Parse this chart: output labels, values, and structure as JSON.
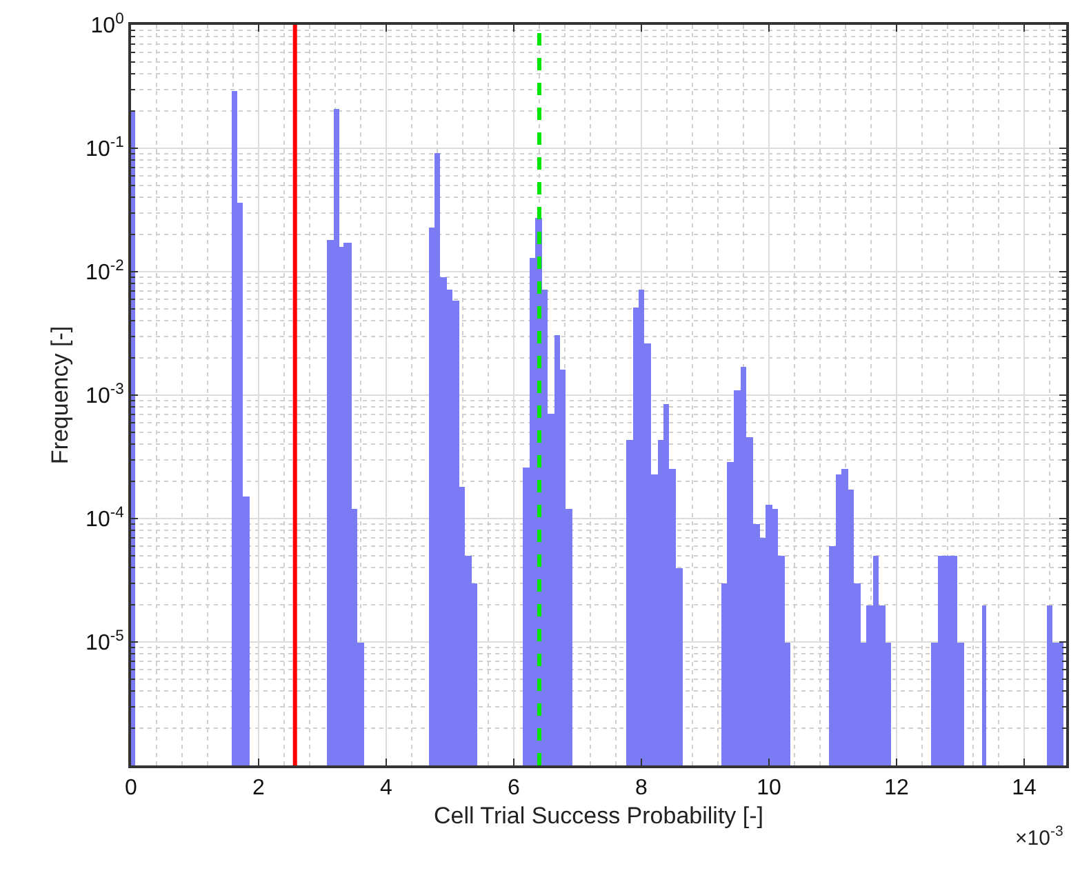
{
  "chart_data": {
    "type": "histogram",
    "xlabel": "Cell Trial Success Probability [-]",
    "ylabel": "Frequency [-]",
    "annotations": [
      "×10$^{-3}$"
    ],
    "color": "#7b7bf5",
    "bins": [
      0,
      0.06,
      1.58,
      1.67,
      1.76,
      1.86,
      3.07,
      3.17,
      3.26,
      3.34,
      3.45,
      3.55,
      3.66,
      4.66,
      4.76,
      4.85,
      4.95,
      5.04,
      5.14,
      5.23,
      5.33,
      5.42,
      6.15,
      6.24,
      6.34,
      6.44,
      6.53,
      6.63,
      6.72,
      6.82,
      6.91,
      7.76,
      7.86,
      7.96,
      8.05,
      8.15,
      8.25,
      8.34,
      8.44,
      8.54,
      8.64,
      9.25,
      9.35,
      9.45,
      9.55,
      9.65,
      9.75,
      9.85,
      9.95,
      10.05,
      10.15,
      10.25,
      10.34,
      10.95,
      11.05,
      11.14,
      11.24,
      11.34,
      11.43,
      11.53,
      11.63,
      11.72,
      11.82,
      11.92,
      12.54,
      12.64,
      12.74,
      12.85,
      12.95,
      13.05,
      13.34,
      13.41,
      14.35,
      14.44,
      14.62
    ],
    "values": [
      0.2,
      null,
      0.29,
      0.036,
      0.00015,
      null,
      0.018,
      0.21,
      0.016,
      0.017,
      0.00012,
      1e-05,
      null,
      0.023,
      0.091,
      0.0091,
      0.0072,
      0.0059,
      0.00018,
      5e-05,
      3e-05,
      null,
      0.00026,
      0.013,
      0.027,
      0.0072,
      0.00071,
      0.0031,
      0.0016,
      0.00012,
      null,
      0.00043,
      0.0051,
      0.0072,
      0.0026,
      0.00023,
      0.00043,
      0.00085,
      0.00025,
      4e-05,
      null,
      3e-05,
      0.00029,
      0.0011,
      0.0017,
      0.00046,
      9e-05,
      7e-05,
      0.00013,
      0.00012,
      5e-05,
      1e-05,
      null,
      6e-05,
      0.00023,
      0.00025,
      0.00017,
      3e-05,
      1e-05,
      2e-05,
      5e-05,
      2e-05,
      1e-05,
      null,
      1e-05,
      5e-05,
      5e-05,
      5e-05,
      1e-05,
      null,
      2e-05,
      null,
      2e-05,
      1e-05
    ],
    "xlim": [
      0,
      14.66
    ],
    "xticks": [
      0,
      2,
      4,
      6,
      8,
      10,
      12,
      14
    ],
    "ylim": [
      1e-06,
      1
    ],
    "yticks": [
      {
        "value": 1e-06,
        "label": null
      },
      {
        "value": 1e-05,
        "label": "10$^{-5}$"
      },
      {
        "value": 0.0001,
        "label": "10$^{-4}$"
      },
      {
        "value": 0.001,
        "label": "10$^{-3}$"
      },
      {
        "value": 0.01,
        "label": "10$^{-2}$"
      },
      {
        "value": 0.1,
        "label": "10$^{-1}$"
      },
      {
        "value": 1,
        "label": "10$^{0}$"
      }
    ],
    "log": "y",
    "grid": true,
    "ref_lines": [
      {
        "axis": "x",
        "value": 2.57,
        "color": "#ff0000",
        "line_style": "solid"
      },
      {
        "axis": "x",
        "value": 6.4,
        "color": "#00e600",
        "line_style": "dashed"
      }
    ]
  }
}
